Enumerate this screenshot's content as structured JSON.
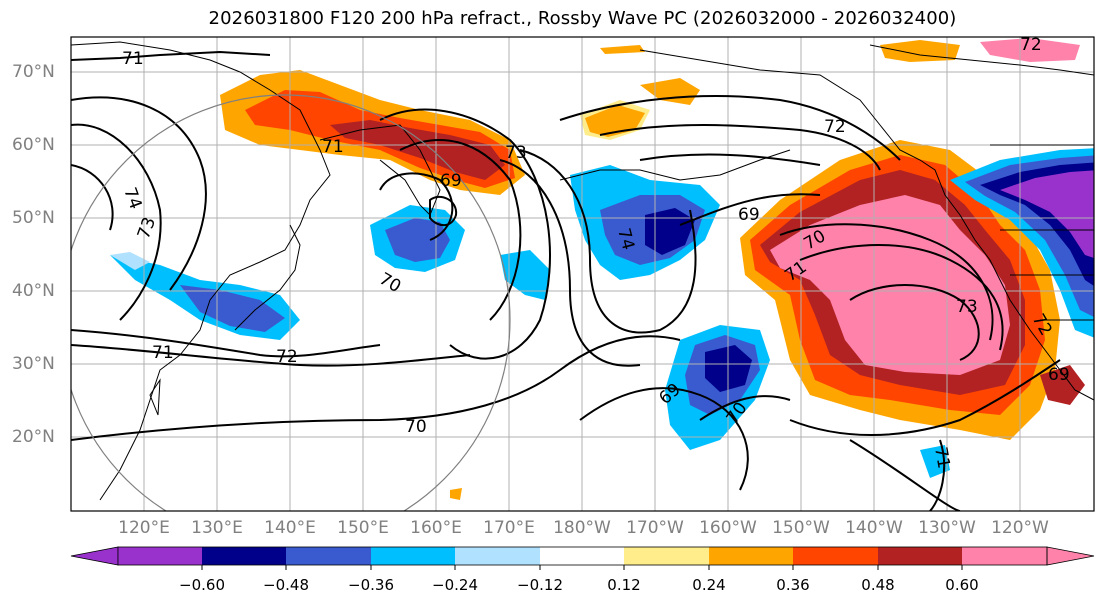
{
  "title": "2026031800 F120 200 hPa refract., Rossby Wave PC (2026032000 - 2026032400)",
  "map": {
    "lat_labels": [
      "70°N",
      "60°N",
      "50°N",
      "40°N",
      "30°N",
      "20°N"
    ],
    "lon_labels": [
      "120°E",
      "130°E",
      "140°E",
      "150°E",
      "160°E",
      "170°E",
      "180°W",
      "170°W",
      "160°W",
      "150°W",
      "140°W",
      "130°W",
      "120°W"
    ],
    "contour_labels": [
      "71",
      "71",
      "74",
      "73",
      "69",
      "73",
      "70",
      "71",
      "72",
      "70",
      "69",
      "74",
      "69",
      "70",
      "71",
      "72",
      "69",
      "70",
      "73",
      "72",
      "71",
      "72"
    ]
  },
  "colorbar": {
    "ticks": [
      "−0.60",
      "−0.48",
      "−0.36",
      "−0.24",
      "−0.12",
      "0.12",
      "0.24",
      "0.36",
      "0.48",
      "0.60"
    ],
    "colors": [
      "#9932cc",
      "#00008b",
      "#3a5bd0",
      "#00bfff",
      "#b0e2ff",
      "#ffffff",
      "#ffec8b",
      "#ffa500",
      "#ff4500",
      "#b22222",
      "#ff82ab"
    ]
  }
}
